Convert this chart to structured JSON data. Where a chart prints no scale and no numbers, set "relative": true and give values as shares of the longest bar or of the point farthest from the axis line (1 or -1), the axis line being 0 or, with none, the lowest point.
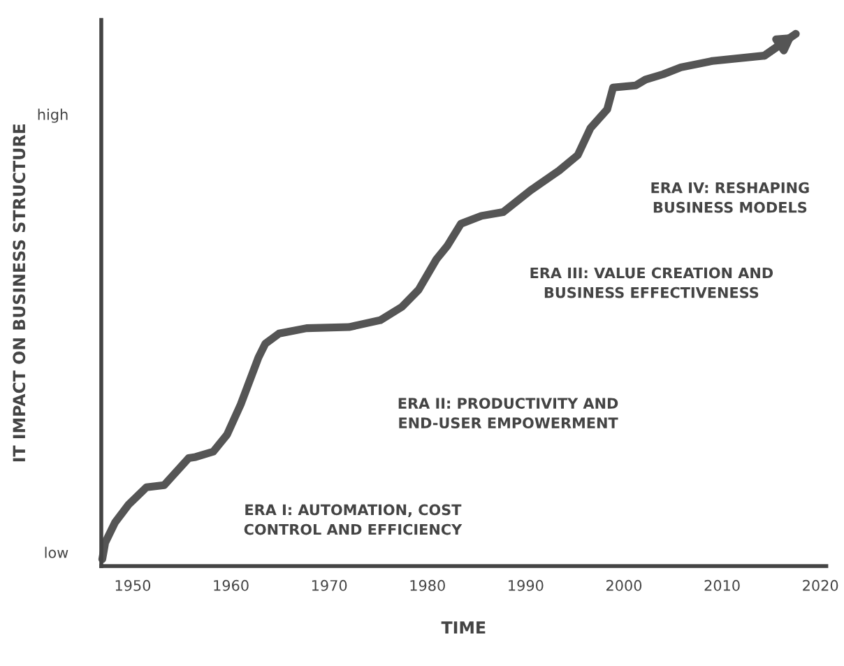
{
  "chart_data": {
    "type": "line",
    "relative": true,
    "xlabel": "TIME",
    "ylabel": "IT IMPACT ON BUSINESS STRUCTURE",
    "xlim": [
      1946.8,
      2020.6
    ],
    "xticks": [
      1950,
      1960,
      1970,
      1980,
      1990,
      2000,
      2010,
      2020
    ],
    "grid": false,
    "legend": false,
    "marker": "none",
    "line_style": "solid",
    "series": [
      {
        "color": "#555555",
        "x": [
          1946.9,
          1947.2,
          1948.2,
          1949.6,
          1951.4,
          1953.2,
          1955.7,
          1956.4,
          1958.2,
          1959.6,
          1961.0,
          1962.8,
          1963.5,
          1964.9,
          1967.7,
          1972.0,
          1975.2,
          1977.4,
          1979.1,
          1980.9,
          1982.0,
          1983.4,
          1985.5,
          1987.7,
          1990.5,
          1993.4,
          1995.3,
          1996.6,
          1998.3,
          1998.9,
          2001.2,
          2002.2,
          2004.0,
          2005.8,
          2009.0,
          2014.3,
          2017.5
        ],
        "values": [
          0.013,
          0.044,
          0.082,
          0.116,
          0.148,
          0.152,
          0.203,
          0.205,
          0.215,
          0.247,
          0.304,
          0.392,
          0.418,
          0.437,
          0.447,
          0.449,
          0.462,
          0.487,
          0.519,
          0.576,
          0.601,
          0.643,
          0.658,
          0.665,
          0.706,
          0.743,
          0.772,
          0.823,
          0.858,
          0.899,
          0.903,
          0.914,
          0.924,
          0.937,
          0.949,
          0.959,
          1.0
        ]
      }
    ],
    "annotations": [
      "ERA I: AUTOMATION, COST\nCONTROL AND EFFICIENCY",
      "ERA II: PRODUCTIVITY AND\nEND-USER EMPOWERMENT",
      "ERA III: VALUE CREATION AND\nBUSINESS EFFECTIVENESS",
      "ERA IV: RESHAPING\nBUSINESS MODELS",
      "low",
      "high"
    ]
  }
}
